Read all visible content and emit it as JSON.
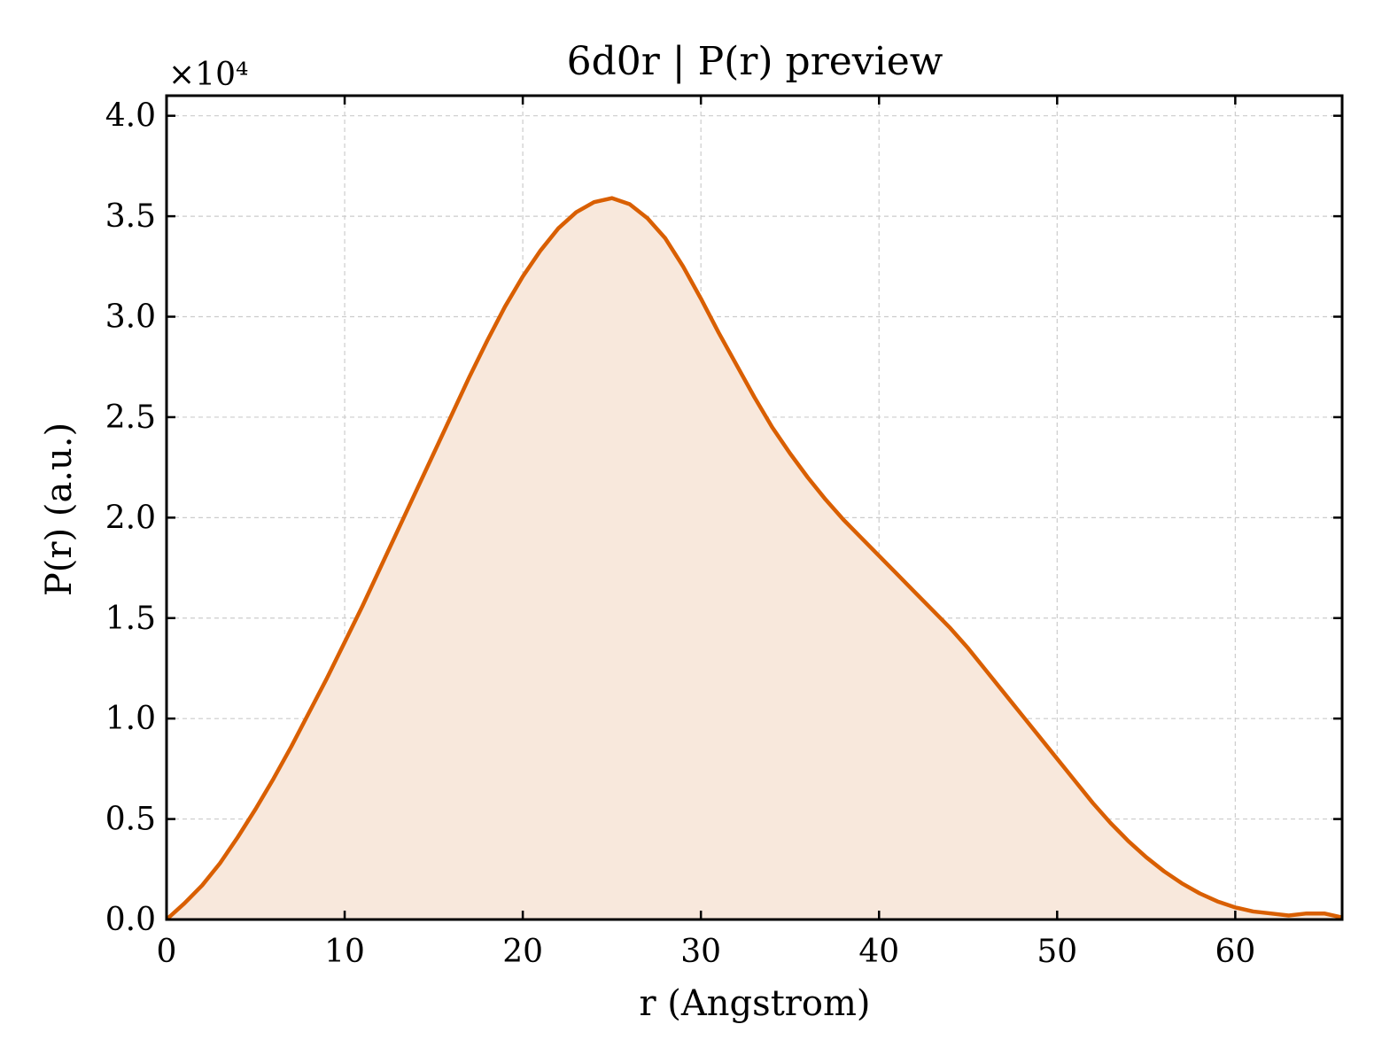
{
  "chart_data": {
    "type": "area",
    "title": "6d0r | P(r) preview",
    "xlabel": "r (Angstrom)",
    "ylabel": "P(r) (a.u.)",
    "y_multiplier": "×10⁴",
    "xlim": [
      0,
      66
    ],
    "ylim": [
      0,
      4.1
    ],
    "x_ticks": [
      0,
      10,
      20,
      30,
      40,
      50,
      60
    ],
    "x_tick_labels": [
      "0",
      "10",
      "20",
      "30",
      "40",
      "50",
      "60"
    ],
    "y_ticks": [
      0,
      0.5,
      1.0,
      1.5,
      2.0,
      2.5,
      3.0,
      3.5,
      4.0
    ],
    "y_tick_labels": [
      "0.0",
      "0.5",
      "1.0",
      "1.5",
      "2.0",
      "2.5",
      "3.0",
      "3.5",
      "4.0"
    ],
    "grid": true,
    "line_color": "#d95f02",
    "fill_color": "#f8e8dc",
    "series": [
      {
        "x": [
          0,
          1,
          2,
          3,
          4,
          5,
          6,
          7,
          8,
          9,
          10,
          11,
          12,
          13,
          14,
          15,
          16,
          17,
          18,
          19,
          20,
          21,
          22,
          23,
          24,
          25,
          26,
          27,
          28,
          29,
          30,
          31,
          32,
          33,
          34,
          35,
          36,
          37,
          38,
          39,
          40,
          41,
          42,
          43,
          44,
          45,
          46,
          47,
          48,
          49,
          50,
          51,
          52,
          53,
          54,
          55,
          56,
          57,
          58,
          59,
          60,
          61,
          62,
          63,
          64,
          65,
          66
        ],
        "y": [
          0,
          0.08,
          0.17,
          0.28,
          0.41,
          0.55,
          0.7,
          0.86,
          1.03,
          1.2,
          1.38,
          1.56,
          1.75,
          1.94,
          2.13,
          2.32,
          2.51,
          2.7,
          2.88,
          3.05,
          3.2,
          3.33,
          3.44,
          3.52,
          3.57,
          3.59,
          3.56,
          3.49,
          3.39,
          3.25,
          3.09,
          2.92,
          2.76,
          2.6,
          2.45,
          2.32,
          2.2,
          2.09,
          1.99,
          1.9,
          1.81,
          1.72,
          1.63,
          1.54,
          1.45,
          1.35,
          1.24,
          1.13,
          1.02,
          0.91,
          0.8,
          0.69,
          0.58,
          0.48,
          0.39,
          0.31,
          0.24,
          0.18,
          0.13,
          0.09,
          0.06,
          0.04,
          0.03,
          0.02,
          0.03,
          0.03,
          0.01
        ]
      }
    ]
  }
}
